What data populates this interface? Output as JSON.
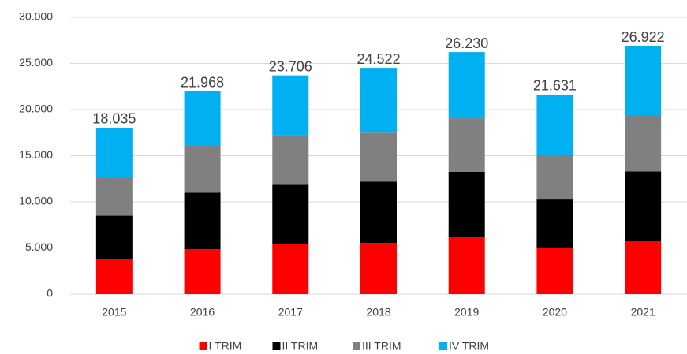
{
  "chart_data": {
    "type": "stacked_bar",
    "categories": [
      "2015",
      "2016",
      "2017",
      "2018",
      "2019",
      "2020",
      "2021"
    ],
    "series": [
      {
        "name": "I TRIM",
        "color": "#ff0000",
        "values": [
          3800,
          4850,
          5450,
          5550,
          6200,
          5000,
          5700
        ]
      },
      {
        "name": "II TRIM",
        "color": "#000000",
        "values": [
          4700,
          6150,
          6400,
          6650,
          7050,
          5250,
          7600
        ]
      },
      {
        "name": "III TRIM",
        "color": "#808080",
        "values": [
          4150,
          5150,
          5400,
          5300,
          5800,
          4850,
          6100
        ]
      },
      {
        "name": "IV TRIM",
        "color": "#00b0f0",
        "values": [
          5385,
          5818,
          6456,
          7022,
          7180,
          6531,
          7522
        ]
      }
    ],
    "totals": {
      "values": [
        18035,
        21968,
        23706,
        24522,
        26230,
        21631,
        26922
      ],
      "value_labels": [
        "18.035",
        "21.968",
        "23.706",
        "24.522",
        "26.230",
        "21.631",
        "26.922"
      ]
    },
    "ylim": [
      0,
      30000
    ],
    "yticks": [
      0,
      {
        "value": 5000,
        "label": "5.000"
      },
      {
        "value": 10000,
        "label": "10.000"
      },
      {
        "value": 15000,
        "label": "15.000"
      },
      {
        "value": 20000,
        "label": "20.000"
      },
      {
        "value": 25000,
        "label": "25.000"
      },
      {
        "value": 30000,
        "label": "30.000"
      }
    ],
    "grid": true,
    "legend": "bottom"
  }
}
